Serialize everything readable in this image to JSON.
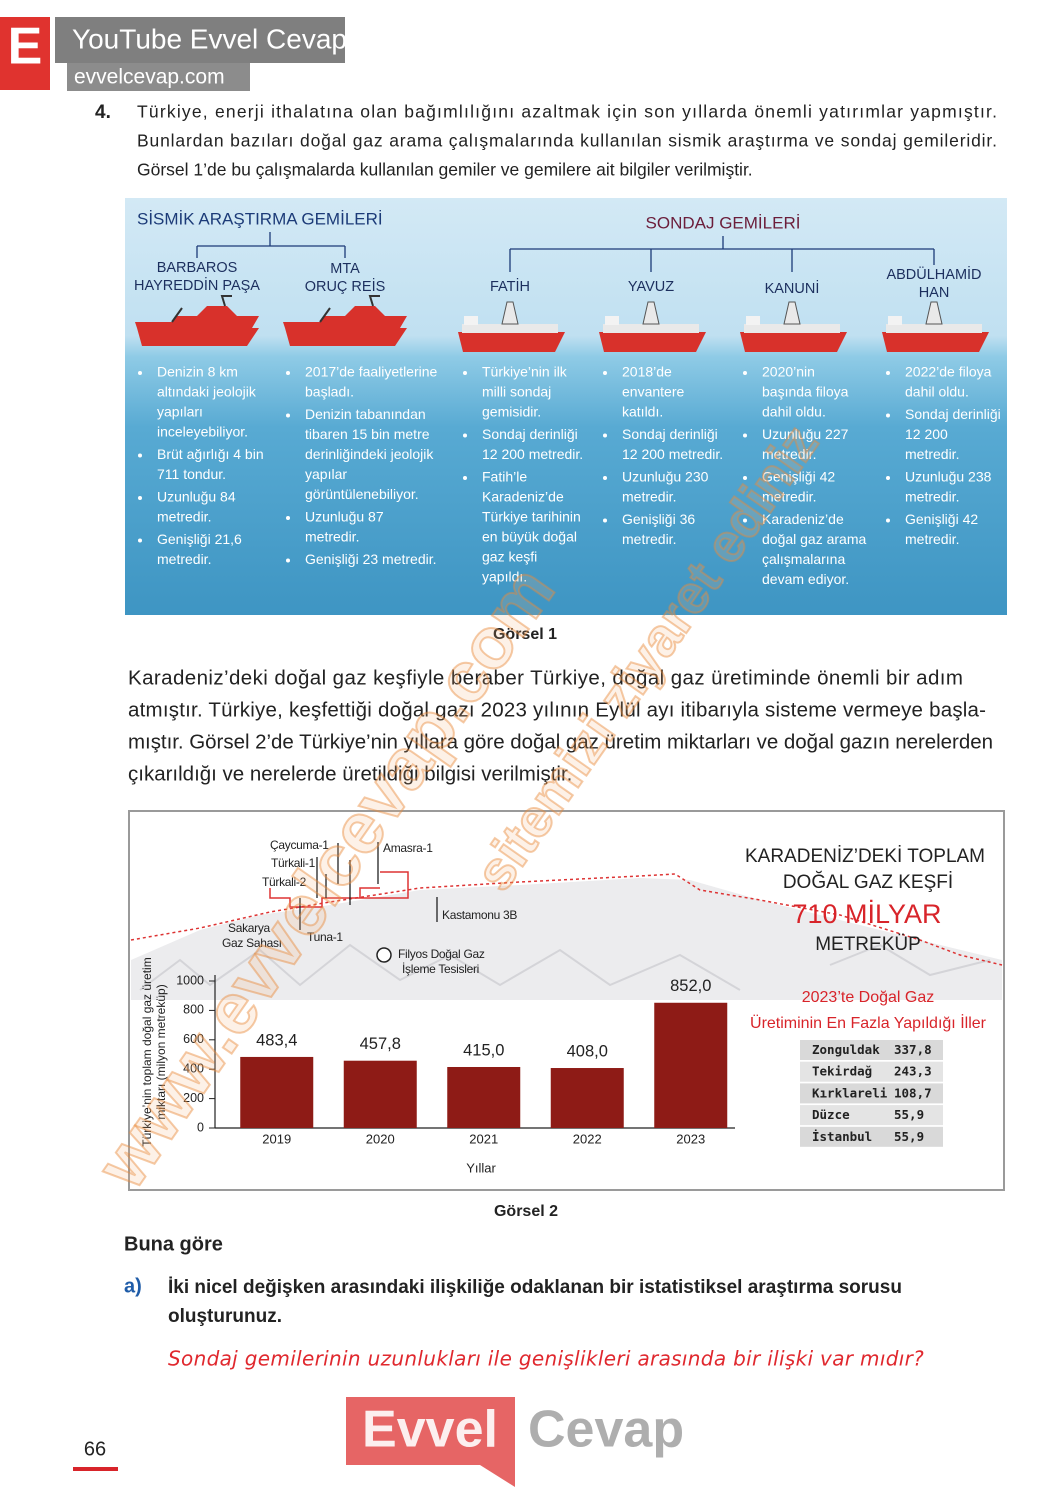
{
  "watermark": {
    "logo": "E",
    "channel": "YouTube Evvel Cevap",
    "site": "evvelcevap.com",
    "diagonal_1": "www.evvelcevap.com",
    "diagonal_2": "sitemizi ziyaret ediniz",
    "footer_1": "Evvel",
    "footer_2": "Cevap"
  },
  "question": {
    "number": "4.",
    "intro": [
      "Türkiye, enerji ithalatına olan bağımlılığını azaltmak için son yıllarda önemli yatırımlar yapmıştır.",
      "Bunlardan bazıları doğal gaz arama çalışmalarında kullanılan sismik araştırma ve sondaj gemileridir.",
      "Görsel 1’de bu çalışmalarda kullanılan gemiler ve gemilere ait bilgiler verilmiştir."
    ]
  },
  "figure1": {
    "seismic_title": "SİSMİK ARAŞTIRMA GEMİLERİ",
    "drilling_title": "SONDAJ GEMİLERİ",
    "ships": [
      {
        "name": [
          "BARBAROS",
          "HAYREDDİN PAŞA"
        ],
        "facts": [
          [
            "Denizin 8 km",
            "altındaki jeolojik",
            "yapıları",
            "inceleyebiliyor."
          ],
          [
            "Brüt ağırlığı 4 bin",
            "711 tondur."
          ],
          [
            "Uzunluğu 84",
            "metredir."
          ],
          [
            "Genişliği 21,6",
            "metredir."
          ]
        ]
      },
      {
        "name": [
          "MTA",
          "ORUÇ REİS"
        ],
        "facts": [
          [
            "2017’de faaliyetlerine",
            "başladı."
          ],
          [
            "Denizin tabanından",
            "tibaren 15 bin metre",
            "derinliğindeki jeolojik",
            "yapılar",
            "görüntülenebiliyor."
          ],
          [
            "Uzunluğu 87",
            "metredir."
          ],
          [
            "Genişliği 23 metredir."
          ]
        ]
      },
      {
        "name": [
          "FATİH"
        ],
        "facts": [
          [
            "Türkiye’nin ilk",
            "milli sondaj",
            "gemisidir."
          ],
          [
            "Sondaj derinliği",
            "12 200 metredir."
          ],
          [
            "Fatih’le",
            "Karadeniz’de",
            "Türkiye tarihinin",
            "en büyük doğal",
            "gaz keşfi",
            "yapıldı."
          ]
        ]
      },
      {
        "name": [
          "YAVUZ"
        ],
        "facts": [
          [
            "2018’de",
            "envantere",
            "katıldı."
          ],
          [
            "Sondaj derinliği",
            "12 200 metredir."
          ],
          [
            "Uzunluğu 230",
            "metredir."
          ],
          [
            "Genişliği 36",
            "metredir."
          ]
        ]
      },
      {
        "name": [
          "KANUNİ"
        ],
        "facts": [
          [
            "2020’nin",
            "başında filoya",
            "dahil oldu."
          ],
          [
            "Uzunluğu 227",
            "metredir."
          ],
          [
            "Genişliği 42",
            "metredir."
          ],
          [
            "Karadeniz’de",
            "doğal gaz arama",
            "çalışmalarına",
            "devam ediyor."
          ]
        ]
      },
      {
        "name": [
          "ABDÜLHAMİD",
          "HAN"
        ],
        "facts": [
          [
            "2022’de filoya",
            "dahil oldu."
          ],
          [
            "Sondaj derinliği",
            "12 200",
            "metredir."
          ],
          [
            "Uzunluğu 238",
            "metredir."
          ],
          [
            "Genişliği 42",
            "metredir."
          ]
        ]
      }
    ],
    "caption": "Görsel 1"
  },
  "paragraph": [
    "Karadeniz’deki doğal gaz keşfiyle beraber Türkiye, doğal gaz üretiminde önemli bir adım",
    "atmıştır. Türkiye, keşfettiği doğal gazı 2023 yılının Eylül ayı itibarıyla sisteme vermeye başla-",
    "mıştır. Görsel 2’de Türkiye’nin yıllara göre doğal gaz üretim miktarları ve doğal gazın nerelerden",
    "çıkarıldığı ve nerelerde üretildiği bilgisi verilmiştir."
  ],
  "chart_data": {
    "type": "bar",
    "y_label": [
      "Türkiye’nin toplam doğal gaz üretim",
      "miktarı (milyon metreküp)"
    ],
    "x_label": "Yıllar",
    "categories": [
      "2019",
      "2020",
      "2021",
      "2022",
      "2023"
    ],
    "values": [
      483.4,
      457.8,
      415.0,
      408.0,
      852.0
    ],
    "value_labels": [
      "483,4",
      "457,8",
      "415,0",
      "408,0",
      "852,0"
    ],
    "color": "#8e1b16",
    "ylim": [
      0,
      1000
    ],
    "yticks": [
      0,
      200,
      400,
      600,
      800,
      1000
    ]
  },
  "figure2": {
    "map_labels": [
      "Çaycuma-1",
      "Türkali-1",
      "Türkali-2",
      "Amasra-1",
      "Sakarya",
      "Gaz Sahası",
      "Tuna-1",
      "Kastamonu 3B",
      "Filyos Doğal Gaz",
      "İşleme Tesisleri"
    ],
    "discovery": {
      "title": [
        "KARADENİZ’DEKİ TOPLAM",
        "DOĞAL GAZ KEŞFİ"
      ],
      "amount": "710 MİLYAR",
      "unit": "METREKÜP"
    },
    "table": {
      "title": [
        "2023’te Doğal Gaz",
        "Üretiminin En Fazla Yapıldığı İller"
      ],
      "rows": [
        [
          "Zonguldak",
          "337,8"
        ],
        [
          "Tekirdağ",
          "243,3"
        ],
        [
          "Kırklareli",
          "108,7"
        ],
        [
          "Düzce",
          "55,9"
        ],
        [
          "İstanbul",
          "55,9"
        ]
      ]
    },
    "caption": "Görsel 2"
  },
  "tasks": {
    "lead": "Buna göre",
    "items": [
      {
        "letter": "a)",
        "question": [
          "İki nicel değişken arasındaki ilişkiliğe odaklanan bir istatistiksel araştırma sorusu",
          "oluşturunuz."
        ],
        "answer": "Sondaj gemilerinin uzunlukları ile genişlikleri arasında bir ilişki var mıdır?"
      }
    ]
  },
  "page_number": "66"
}
